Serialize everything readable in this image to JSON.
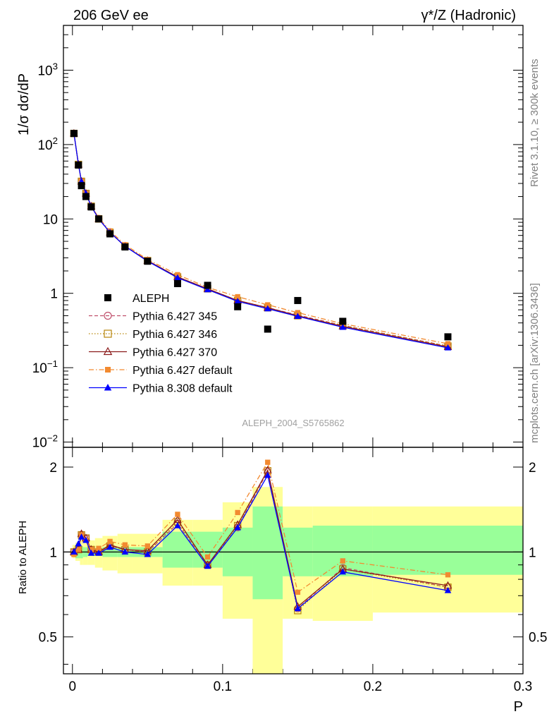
{
  "header": {
    "left": "206 GeV ee",
    "right": "γ*/Z (Hadronic)"
  },
  "side_texts": {
    "rivet": "Rivet 3.1.10, ≥ 300k events",
    "mcplots": "mcplots.cern.ch [arXiv:1306.3436]"
  },
  "watermark": "ALEPH_2004_S5765862",
  "chart_data": [
    {
      "type": "scatter",
      "panel": "main",
      "ylabel": "1/σ  dσ/dP",
      "yscale": "log",
      "ylim": [
        0.0085,
        4000
      ],
      "xlim": [
        -0.006,
        0.3
      ],
      "ytick_labels": [
        "10^-2",
        "10^-1",
        "1",
        "10",
        "10^2",
        "10^3"
      ],
      "legend_position": "left-middle",
      "x": [
        0.001,
        0.004,
        0.006,
        0.009,
        0.0125,
        0.0175,
        0.025,
        0.035,
        0.05,
        0.07,
        0.09,
        0.11,
        0.13,
        0.15,
        0.18,
        0.25
      ],
      "series": [
        {
          "name": "ALEPH",
          "color": "#000000",
          "marker": "square",
          "values": [
            141,
            53,
            28,
            20,
            14.5,
            10,
            6.3,
            4.2,
            2.7,
            1.35,
            1.28,
            0.66,
            0.33,
            0.8,
            0.42,
            0.26
          ]
        },
        {
          "name": "Pythia 6.427 345",
          "color": "#c0506c",
          "marker": "open-circle",
          "linestyle": "dashed",
          "values": [
            141,
            54,
            32,
            22,
            14.8,
            10,
            6.6,
            4.3,
            2.75,
            1.66,
            1.15,
            0.8,
            0.64,
            0.51,
            0.37,
            0.195
          ]
        },
        {
          "name": "Pythia 6.427 346",
          "color": "#b8860b",
          "marker": "open-square",
          "linestyle": "dotted",
          "values": [
            141,
            54,
            32,
            22,
            14.8,
            10,
            6.6,
            4.3,
            2.75,
            1.66,
            1.15,
            0.8,
            0.64,
            0.5,
            0.37,
            0.195
          ]
        },
        {
          "name": "Pythia 6.427 370",
          "color": "#8b1a1a",
          "marker": "open-triangle",
          "linestyle": "solid",
          "values": [
            141,
            54,
            32,
            22,
            14.8,
            10,
            6.6,
            4.3,
            2.75,
            1.66,
            1.15,
            0.8,
            0.64,
            0.5,
            0.36,
            0.19
          ]
        },
        {
          "name": "Pythia 6.427 default",
          "color": "#f28a30",
          "marker": "filled-square",
          "linestyle": "dashdot",
          "values": [
            141,
            54,
            32,
            22,
            15,
            10.4,
            6.9,
            4.5,
            2.85,
            1.78,
            1.2,
            0.9,
            0.7,
            0.55,
            0.39,
            0.21
          ]
        },
        {
          "name": "Pythia 8.308 default",
          "color": "#0000ff",
          "marker": "filled-triangle",
          "linestyle": "solid",
          "values": [
            141,
            54,
            32,
            22,
            14.8,
            10,
            6.6,
            4.3,
            2.7,
            1.62,
            1.12,
            0.78,
            0.62,
            0.49,
            0.35,
            0.185
          ]
        }
      ]
    },
    {
      "type": "line",
      "panel": "ratio",
      "xlabel": "P",
      "ylabel": "Ratio to ALEPH",
      "yscale": "log",
      "ylim": [
        0.37,
        2.35
      ],
      "xlim": [
        -0.006,
        0.3
      ],
      "xtick_labels": [
        "0",
        "0.1",
        "0.2",
        "0.3"
      ],
      "ytick_labels": [
        "0.5",
        "1",
        "2"
      ],
      "x": [
        0.001,
        0.004,
        0.006,
        0.009,
        0.0125,
        0.0175,
        0.025,
        0.035,
        0.05,
        0.07,
        0.09,
        0.11,
        0.13,
        0.15,
        0.18,
        0.25
      ],
      "bands": {
        "edges": [
          0,
          0.002,
          0.005,
          0.007,
          0.01,
          0.015,
          0.02,
          0.03,
          0.04,
          0.06,
          0.08,
          0.1,
          0.12,
          0.14,
          0.16,
          0.2,
          0.3
        ],
        "stat": {
          "color": "#99ff99",
          "lo": [
            0.97,
            0.95,
            0.95,
            0.96,
            0.97,
            0.97,
            0.96,
            0.96,
            0.96,
            0.88,
            0.88,
            0.82,
            0.68,
            0.82,
            0.82,
            0.83
          ],
          "hi": [
            1.03,
            1.05,
            1.05,
            1.04,
            1.03,
            1.03,
            1.04,
            1.04,
            1.04,
            1.18,
            1.18,
            1.22,
            1.45,
            1.22,
            1.24,
            1.24
          ]
        },
        "total": {
          "color": "#ffff99",
          "lo": [
            0.95,
            0.93,
            0.9,
            0.9,
            0.9,
            0.88,
            0.86,
            0.84,
            0.84,
            0.76,
            0.76,
            0.58,
            0.35,
            0.58,
            0.57,
            0.61
          ],
          "hi": [
            1.06,
            1.08,
            1.1,
            1.1,
            1.1,
            1.12,
            1.14,
            1.16,
            1.16,
            1.3,
            1.3,
            1.5,
            1.7,
            1.45,
            1.45,
            1.45
          ]
        }
      },
      "reference_line": 1,
      "series": [
        {
          "name": "Pythia 6.427 345",
          "color": "#c0506c",
          "marker": "open-circle",
          "linestyle": "dashed",
          "values": [
            1.0,
            1.02,
            1.15,
            1.12,
            1.02,
            1.0,
            1.05,
            1.02,
            1.0,
            1.26,
            0.9,
            1.22,
            1.93,
            0.63,
            0.88,
            0.75
          ]
        },
        {
          "name": "Pythia 6.427 346",
          "color": "#b8860b",
          "marker": "open-square",
          "linestyle": "dotted",
          "values": [
            1.0,
            1.02,
            1.15,
            1.12,
            1.02,
            1.0,
            1.05,
            1.02,
            1.0,
            1.28,
            0.9,
            1.24,
            1.94,
            0.62,
            0.87,
            0.75
          ]
        },
        {
          "name": "Pythia 6.427 370",
          "color": "#8b1a1a",
          "marker": "open-triangle",
          "linestyle": "solid",
          "values": [
            1.0,
            1.02,
            1.16,
            1.12,
            1.02,
            1.0,
            1.06,
            1.02,
            1.01,
            1.3,
            0.9,
            1.25,
            1.95,
            0.64,
            0.87,
            0.76
          ]
        },
        {
          "name": "Pythia 6.427 default",
          "color": "#f28a30",
          "marker": "filled-square",
          "linestyle": "dashdot",
          "values": [
            0.98,
            1.02,
            1.15,
            1.1,
            1.02,
            1.03,
            1.09,
            1.06,
            1.05,
            1.36,
            0.96,
            1.38,
            2.08,
            0.72,
            0.93,
            0.83
          ]
        },
        {
          "name": "Pythia 8.308 default",
          "color": "#0000ff",
          "marker": "filled-triangle",
          "linestyle": "solid",
          "values": [
            1.0,
            1.07,
            1.13,
            1.1,
            0.99,
            0.99,
            1.04,
            1.0,
            0.98,
            1.24,
            0.89,
            1.22,
            1.87,
            0.63,
            0.85,
            0.73
          ]
        }
      ]
    }
  ]
}
